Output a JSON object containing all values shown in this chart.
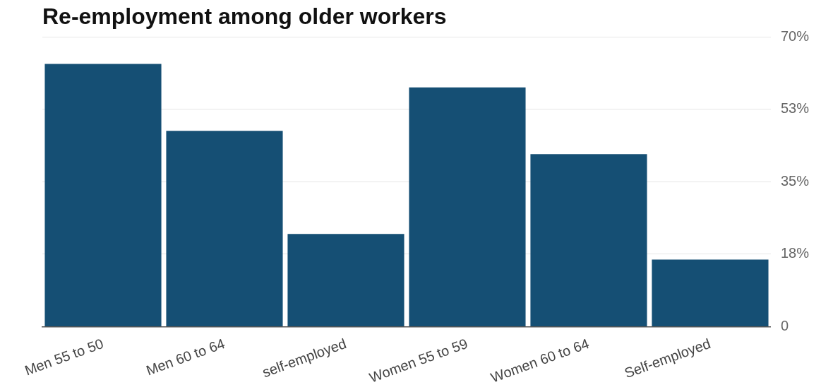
{
  "chart_data": {
    "type": "bar",
    "title": "Re-employment among older workers",
    "categories": [
      "Men 55 to 50",
      "Men 60 to 64",
      "self-employed",
      "Women 55 to 59",
      "Women 60 to 64",
      "Self-employed"
    ],
    "values": [
      63.5,
      47.3,
      22.4,
      57.8,
      41.7,
      16.2
    ],
    "color": "#154f74",
    "ylim": [
      0,
      70
    ],
    "yticks": [
      {
        "value": 0,
        "label": "0"
      },
      {
        "value": 17.5,
        "label": "18%"
      },
      {
        "value": 35,
        "label": "35%"
      },
      {
        "value": 52.5,
        "label": "53%"
      },
      {
        "value": 70,
        "label": "70%"
      }
    ],
    "grid": "y",
    "legend": false
  }
}
